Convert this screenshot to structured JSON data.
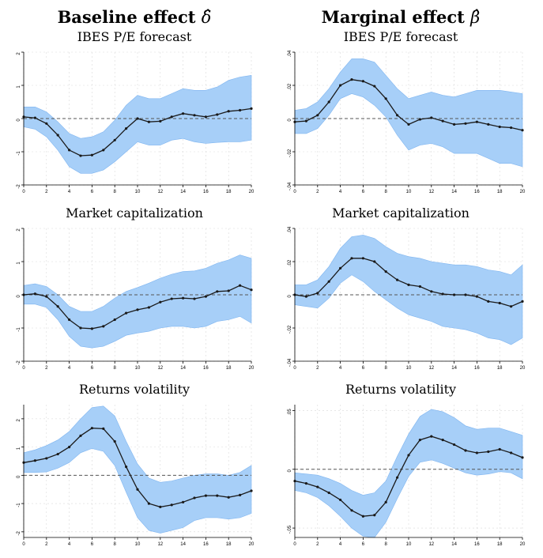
{
  "columns": {
    "left": {
      "title": "Baseline effect",
      "symbol": "δ̂"
    },
    "right": {
      "title": "Marginal effect",
      "symbol": "β̂"
    }
  },
  "colors": {
    "band": "#a7cff8",
    "band_edge": "#7fb5f0",
    "line": "#1a1a1a",
    "zero_line": "#555555",
    "grid": "#d9d9d9"
  },
  "chart_data": [
    {
      "type": "line",
      "panel": "left-row1",
      "title": "IBES P/E forecast",
      "x": [
        0,
        1,
        2,
        3,
        4,
        5,
        6,
        7,
        8,
        9,
        10,
        11,
        12,
        13,
        14,
        15,
        16,
        17,
        18,
        19,
        20
      ],
      "xticks": [
        0,
        2,
        4,
        6,
        8,
        10,
        12,
        14,
        16,
        18,
        20
      ],
      "yticks": [
        -2,
        -1,
        0,
        1,
        2
      ],
      "yticklabels": [
        "-2",
        "-1",
        "0",
        "1",
        "2"
      ],
      "ylim": [
        -2,
        2
      ],
      "series": [
        {
          "values": [
            0.05,
            0.02,
            -0.15,
            -0.5,
            -0.95,
            -1.12,
            -1.1,
            -0.95,
            -0.65,
            -0.3,
            0,
            -0.1,
            -0.08,
            0.05,
            0.15,
            0.1,
            0.05,
            0.12,
            0.22,
            0.25,
            0.3
          ]
        }
      ],
      "band_upper": [
        0.35,
        0.35,
        0.2,
        -0.1,
        -0.45,
        -0.6,
        -0.55,
        -0.4,
        -0.05,
        0.4,
        0.7,
        0.6,
        0.6,
        0.75,
        0.9,
        0.85,
        0.85,
        0.95,
        1.15,
        1.25,
        1.3
      ],
      "band_lower": [
        -0.25,
        -0.32,
        -0.55,
        -0.95,
        -1.45,
        -1.65,
        -1.65,
        -1.55,
        -1.3,
        -1.0,
        -0.7,
        -0.8,
        -0.8,
        -0.65,
        -0.6,
        -0.7,
        -0.75,
        -0.72,
        -0.7,
        -0.7,
        -0.65
      ]
    },
    {
      "type": "line",
      "panel": "right-row1",
      "title": "IBES P/E forecast",
      "x": [
        0,
        1,
        2,
        3,
        4,
        5,
        6,
        7,
        8,
        9,
        10,
        11,
        12,
        13,
        14,
        15,
        16,
        17,
        18,
        19,
        20
      ],
      "xticks": [
        0,
        2,
        4,
        6,
        8,
        10,
        12,
        14,
        16,
        18,
        20
      ],
      "yticks": [
        -0.04,
        -0.02,
        0,
        0.02,
        0.04
      ],
      "yticklabels": [
        "-.04",
        "-.02",
        "0",
        ".02",
        ".04"
      ],
      "ylim": [
        -0.04,
        0.04
      ],
      "series": [
        {
          "values": [
            -0.002,
            -0.0015,
            0.002,
            0.01,
            0.02,
            0.0235,
            0.0225,
            0.0195,
            0.012,
            0.002,
            -0.0035,
            -0.0005,
            0.0005,
            -0.0015,
            -0.0035,
            -0.003,
            -0.002,
            -0.0035,
            -0.005,
            -0.0055,
            -0.007
          ]
        }
      ],
      "band_upper": [
        0.005,
        0.006,
        0.01,
        0.018,
        0.028,
        0.036,
        0.036,
        0.034,
        0.026,
        0.018,
        0.012,
        0.014,
        0.016,
        0.014,
        0.013,
        0.015,
        0.017,
        0.017,
        0.017,
        0.016,
        0.015
      ],
      "band_lower": [
        -0.009,
        -0.009,
        -0.006,
        0.002,
        0.012,
        0.015,
        0.013,
        0.008,
        0.001,
        -0.01,
        -0.019,
        -0.016,
        -0.015,
        -0.017,
        -0.021,
        -0.021,
        -0.021,
        -0.024,
        -0.027,
        -0.027,
        -0.029
      ]
    },
    {
      "type": "line",
      "panel": "left-row2",
      "title": "Market capitalization",
      "x": [
        0,
        1,
        2,
        3,
        4,
        5,
        6,
        7,
        8,
        9,
        10,
        11,
        12,
        13,
        14,
        15,
        16,
        17,
        18,
        19,
        20
      ],
      "xticks": [
        0,
        2,
        4,
        6,
        8,
        10,
        12,
        14,
        16,
        18,
        20
      ],
      "yticks": [
        -2,
        -1,
        0,
        1,
        2
      ],
      "yticklabels": [
        "-2",
        "-1",
        "0",
        "1",
        "2"
      ],
      "ylim": [
        -2,
        2
      ],
      "series": [
        {
          "values": [
            0,
            0.03,
            -0.05,
            -0.35,
            -0.75,
            -1.0,
            -1.02,
            -0.95,
            -0.75,
            -0.55,
            -0.45,
            -0.38,
            -0.22,
            -0.12,
            -0.1,
            -0.12,
            -0.05,
            0.1,
            0.12,
            0.28,
            0.15
          ]
        }
      ],
      "band_upper": [
        0.28,
        0.33,
        0.25,
        0.0,
        -0.35,
        -0.5,
        -0.5,
        -0.35,
        -0.1,
        0.1,
        0.22,
        0.35,
        0.5,
        0.62,
        0.7,
        0.72,
        0.8,
        0.95,
        1.05,
        1.2,
        1.1
      ],
      "band_lower": [
        -0.28,
        -0.28,
        -0.38,
        -0.75,
        -1.25,
        -1.55,
        -1.6,
        -1.55,
        -1.4,
        -1.22,
        -1.15,
        -1.1,
        -1.0,
        -0.95,
        -0.95,
        -1.0,
        -0.95,
        -0.8,
        -0.75,
        -0.65,
        -0.85
      ]
    },
    {
      "type": "line",
      "panel": "right-row2",
      "title": "Market capitalization",
      "x": [
        0,
        1,
        2,
        3,
        4,
        5,
        6,
        7,
        8,
        9,
        10,
        11,
        12,
        13,
        14,
        15,
        16,
        17,
        18,
        19,
        20
      ],
      "xticks": [
        0,
        2,
        4,
        6,
        8,
        10,
        12,
        14,
        16,
        18,
        20
      ],
      "yticks": [
        -0.04,
        -0.02,
        0,
        0.02,
        0.04
      ],
      "yticklabels": [
        "-.04",
        "-.02",
        "0",
        ".02",
        ".04"
      ],
      "ylim": [
        -0.04,
        0.04
      ],
      "series": [
        {
          "values": [
            0,
            -0.001,
            0.001,
            0.008,
            0.016,
            0.022,
            0.022,
            0.02,
            0.014,
            0.009,
            0.006,
            0.005,
            0.002,
            0.0005,
            0,
            0,
            -0.001,
            -0.004,
            -0.005,
            -0.007,
            -0.004
          ]
        }
      ],
      "band_upper": [
        0.006,
        0.006,
        0.009,
        0.017,
        0.028,
        0.035,
        0.036,
        0.034,
        0.029,
        0.025,
        0.023,
        0.022,
        0.02,
        0.019,
        0.018,
        0.018,
        0.017,
        0.015,
        0.014,
        0.012,
        0.018
      ],
      "band_lower": [
        -0.006,
        -0.007,
        -0.008,
        -0.002,
        0.007,
        0.012,
        0.008,
        0.002,
        -0.003,
        -0.008,
        -0.012,
        -0.014,
        -0.016,
        -0.019,
        -0.02,
        -0.021,
        -0.023,
        -0.026,
        -0.027,
        -0.03,
        -0.026
      ]
    },
    {
      "type": "line",
      "panel": "left-row3",
      "title": "Returns volatility",
      "x": [
        0,
        1,
        2,
        3,
        4,
        5,
        6,
        7,
        8,
        9,
        10,
        11,
        12,
        13,
        14,
        15,
        16,
        17,
        18,
        19,
        20
      ],
      "xticks": [
        0,
        2,
        4,
        6,
        8,
        10,
        12,
        14,
        16,
        18,
        20
      ],
      "yticks": [
        -2,
        -1,
        0,
        1,
        2
      ],
      "yticklabels": [
        "-2",
        "-1",
        "0",
        "1",
        "2"
      ],
      "ylim": [
        -2.2,
        2.5
      ],
      "series": [
        {
          "values": [
            0.45,
            0.52,
            0.6,
            0.75,
            1.0,
            1.4,
            1.67,
            1.65,
            1.2,
            0.3,
            -0.5,
            -1.0,
            -1.12,
            -1.05,
            -0.95,
            -0.8,
            -0.72,
            -0.72,
            -0.78,
            -0.7,
            -0.55
          ]
        }
      ],
      "band_upper": [
        0.8,
        0.9,
        1.05,
        1.25,
        1.55,
        2.0,
        2.4,
        2.45,
        2.1,
        1.2,
        0.4,
        -0.1,
        -0.25,
        -0.2,
        -0.1,
        0.0,
        0.05,
        0.05,
        0.0,
        0.1,
        0.35
      ],
      "band_lower": [
        0.1,
        0.1,
        0.12,
        0.25,
        0.45,
        0.8,
        0.95,
        0.85,
        0.35,
        -0.6,
        -1.5,
        -1.95,
        -2.05,
        -1.95,
        -1.85,
        -1.6,
        -1.5,
        -1.5,
        -1.55,
        -1.5,
        -1.35
      ]
    },
    {
      "type": "line",
      "panel": "right-row3",
      "title": "Returns volatility",
      "x": [
        0,
        1,
        2,
        3,
        4,
        5,
        6,
        7,
        8,
        9,
        10,
        11,
        12,
        13,
        14,
        15,
        16,
        17,
        18,
        19,
        20
      ],
      "xticks": [
        0,
        2,
        4,
        6,
        8,
        10,
        12,
        14,
        16,
        18,
        20
      ],
      "yticks": [
        -0.05,
        0,
        0.05
      ],
      "yticklabels": [
        "-.05",
        "0",
        ".05"
      ],
      "ylim": [
        -0.058,
        0.055
      ],
      "series": [
        {
          "values": [
            -0.01,
            -0.012,
            -0.015,
            -0.02,
            -0.026,
            -0.035,
            -0.04,
            -0.039,
            -0.028,
            -0.007,
            0.012,
            0.025,
            0.028,
            0.025,
            0.021,
            0.016,
            0.014,
            0.015,
            0.017,
            0.014,
            0.01
          ]
        }
      ],
      "band_upper": [
        -0.003,
        -0.004,
        -0.005,
        -0.008,
        -0.012,
        -0.018,
        -0.022,
        -0.02,
        -0.01,
        0.011,
        0.03,
        0.045,
        0.051,
        0.049,
        0.044,
        0.037,
        0.034,
        0.035,
        0.035,
        0.032,
        0.029
      ],
      "band_lower": [
        -0.018,
        -0.02,
        -0.024,
        -0.031,
        -0.04,
        -0.05,
        -0.057,
        -0.058,
        -0.045,
        -0.025,
        -0.006,
        0.006,
        0.008,
        0.005,
        0.001,
        -0.003,
        -0.005,
        -0.004,
        -0.002,
        -0.003,
        -0.008
      ]
    }
  ]
}
